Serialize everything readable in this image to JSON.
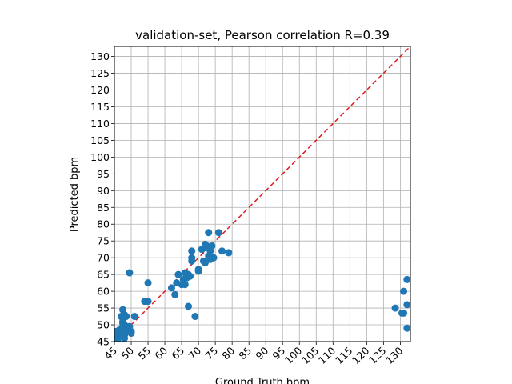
{
  "chart_data": {
    "type": "scatter",
    "title": "validation-set, Pearson correlation R=0.39",
    "xlabel": "Ground Truth bpm",
    "ylabel": "Predicted bpm",
    "xlim": [
      45,
      133
    ],
    "ylim": [
      45,
      133
    ],
    "xticks": [
      45,
      50,
      55,
      60,
      65,
      70,
      75,
      80,
      85,
      90,
      95,
      100,
      105,
      110,
      115,
      120,
      125,
      130
    ],
    "yticks": [
      45,
      50,
      55,
      60,
      65,
      70,
      75,
      80,
      85,
      90,
      95,
      100,
      105,
      110,
      115,
      120,
      125,
      130
    ],
    "grid": true,
    "identity_line": {
      "color": "#e31a1c",
      "style": "dashed"
    },
    "marker_color": "#1f77b4",
    "points": [
      [
        45.5,
        46
      ],
      [
        46,
        47.5
      ],
      [
        46.5,
        48.5
      ],
      [
        47,
        48
      ],
      [
        47.5,
        49.5
      ],
      [
        47,
        47
      ],
      [
        46,
        45.5
      ],
      [
        45.5,
        48
      ],
      [
        48,
        50
      ],
      [
        47.5,
        51
      ],
      [
        47.5,
        52
      ],
      [
        47.5,
        52.5
      ],
      [
        48,
        53
      ],
      [
        47.5,
        54.5
      ],
      [
        47,
        52.5
      ],
      [
        48.5,
        48
      ],
      [
        49,
        48.5
      ],
      [
        48,
        46
      ],
      [
        48,
        47
      ],
      [
        47.5,
        50.5
      ],
      [
        48.5,
        52.5
      ],
      [
        49.5,
        49.5
      ],
      [
        50,
        48
      ],
      [
        50,
        47.5
      ],
      [
        51,
        52.5
      ],
      [
        49.5,
        65.5
      ],
      [
        54,
        57
      ],
      [
        55,
        57
      ],
      [
        55,
        62.5
      ],
      [
        62,
        61
      ],
      [
        63,
        59
      ],
      [
        63.5,
        62.5
      ],
      [
        64,
        65
      ],
      [
        65,
        62
      ],
      [
        65.5,
        63.5
      ],
      [
        66,
        62
      ],
      [
        66.5,
        64
      ],
      [
        66,
        65.5
      ],
      [
        67,
        65
      ],
      [
        67.5,
        64.5
      ],
      [
        67,
        55.5
      ],
      [
        68,
        72
      ],
      [
        68,
        70
      ],
      [
        68,
        69
      ],
      [
        69,
        52.5
      ],
      [
        70,
        66
      ],
      [
        70,
        66.5
      ],
      [
        71,
        72.5
      ],
      [
        72,
        73
      ],
      [
        72,
        74
      ],
      [
        71.5,
        69
      ],
      [
        72,
        68.5
      ],
      [
        72.5,
        73.5
      ],
      [
        73,
        70.5
      ],
      [
        73,
        77.5
      ],
      [
        73.5,
        72
      ],
      [
        74,
        73.5
      ],
      [
        74.5,
        70
      ],
      [
        73.5,
        69.5
      ],
      [
        76,
        77.5
      ],
      [
        77,
        72
      ],
      [
        79,
        71.5
      ],
      [
        128.5,
        55
      ],
      [
        130.5,
        53.5
      ],
      [
        131,
        53.5
      ],
      [
        131,
        60
      ],
      [
        132,
        56
      ],
      [
        132,
        63.5
      ],
      [
        132,
        49
      ]
    ]
  }
}
